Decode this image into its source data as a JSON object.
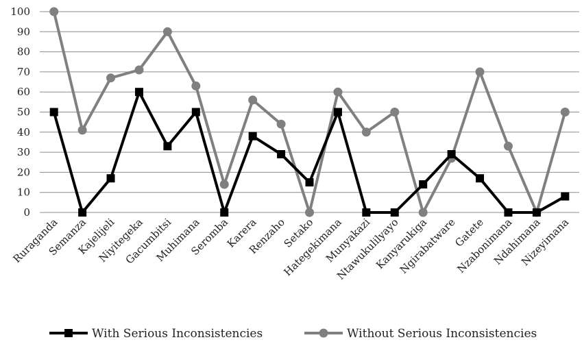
{
  "chart_data": {
    "type": "line",
    "categories": [
      "Ruraganda",
      "Semanza",
      "Kajelijeli",
      "Niyitegeka",
      "Gacumbitsi",
      "Muhimana",
      "Seromba",
      "Karera",
      "Renzaho",
      "Setako",
      "Hategekimana",
      "Munyakazi",
      "Ntawukulilyayo",
      "Kanyarukiga",
      "Ngirabatware",
      "Gatete",
      "Nzabonimana",
      "Ndahimana",
      "Nizeyimana"
    ],
    "series": [
      {
        "name": "With Serious Inconsistencies",
        "color": "#000000",
        "marker": "square",
        "values": [
          50,
          0,
          17,
          60,
          33,
          50,
          0,
          38,
          29,
          15,
          50,
          0,
          0,
          14,
          29,
          17,
          0,
          0,
          8
        ]
      },
      {
        "name": "Without Serious Inconsistencies",
        "color": "#808080",
        "marker": "circle",
        "values": [
          100,
          41,
          67,
          71,
          90,
          63,
          14,
          56,
          44,
          0,
          60,
          40,
          50,
          0,
          27,
          70,
          33,
          0,
          50
        ]
      }
    ],
    "ylim": [
      0,
      100
    ],
    "yticks": [
      "0",
      "10",
      "20",
      "30",
      "40",
      "50",
      "60",
      "70",
      "80",
      "90",
      "100"
    ],
    "grid": true,
    "legend": "bottom"
  }
}
